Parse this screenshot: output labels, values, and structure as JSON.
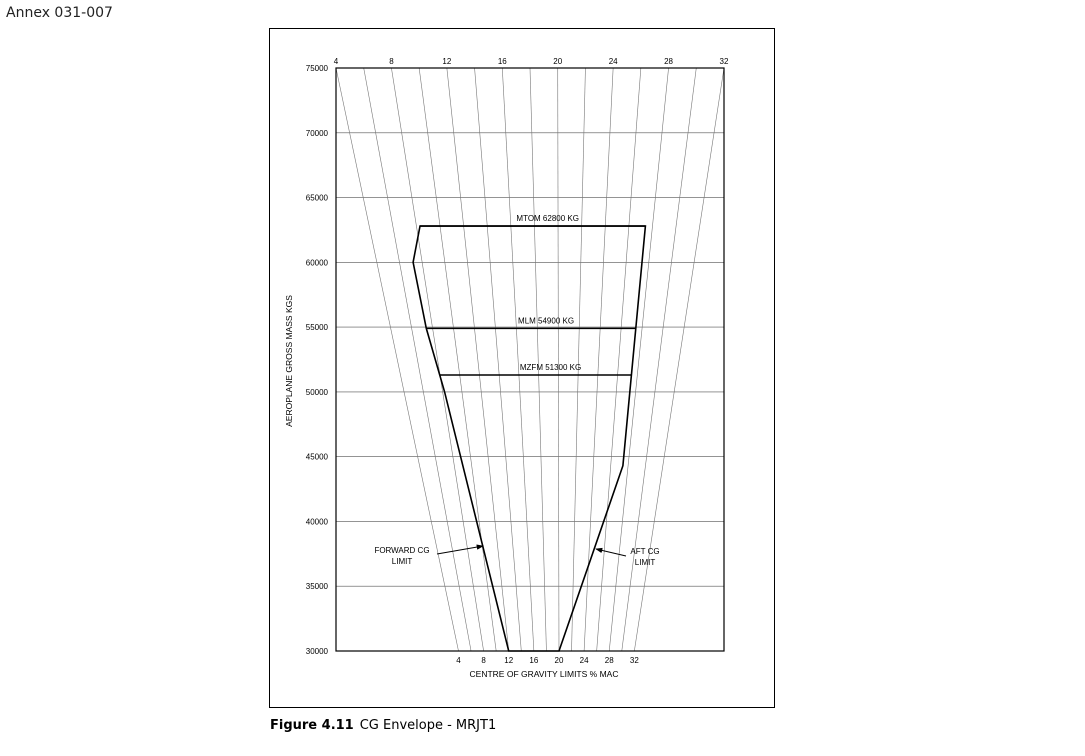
{
  "annex": "Annex 031-007",
  "caption": {
    "figure_number": "Figure 4.11",
    "title": "CG Envelope - MRJT1"
  },
  "chart_data": {
    "type": "line",
    "xlabel": "CENTRE OF GRAVITY LIMITS  % MAC",
    "ylabel": "AEROPLANE GROSS MASS  KGS",
    "ylim": [
      30000,
      75000
    ],
    "y_ticks": [
      30000,
      35000,
      40000,
      45000,
      50000,
      55000,
      60000,
      65000,
      70000,
      75000
    ],
    "grid": true,
    "mac_lines": {
      "top_labels": [
        "4",
        "8",
        "12",
        "16",
        "20",
        "24",
        "28",
        "32"
      ],
      "bottom_labels": [
        "4",
        "8",
        "12",
        "16",
        "20",
        "24",
        "28",
        "32"
      ],
      "spacing_percent_mac": 2,
      "range_percent_mac": [
        4,
        32
      ]
    },
    "envelope": {
      "mass": [
        62800,
        60000,
        54900,
        50000,
        30000,
        30000,
        44300,
        62800
      ],
      "percent_mac": [
        8.3,
        7.2,
        7.4,
        8.2,
        12.0,
        20.0,
        27.4,
        27.4
      ]
    },
    "limit_lines": [
      {
        "label": "MTOM 62800 KG",
        "mass": 62800
      },
      {
        "label": "MLM 54900 KG",
        "mass": 54900
      },
      {
        "label": "MZFM 51300 KG",
        "mass": 51300
      }
    ],
    "annotations": [
      {
        "line1": "FORWARD CG",
        "line2": "LIMIT"
      },
      {
        "line1": "AFT CG",
        "line2": "LIMIT"
      }
    ],
    "colors": {
      "ink": "#000000",
      "grid": "#555555",
      "mac_line": "#777777"
    }
  }
}
